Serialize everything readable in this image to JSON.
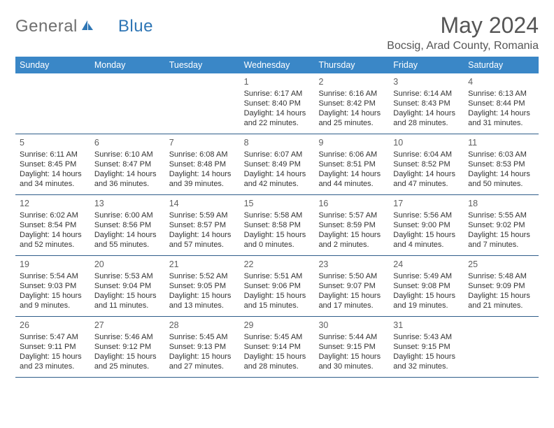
{
  "logo": {
    "text1": "General",
    "text2": "Blue"
  },
  "title": {
    "month": "May 2024",
    "location": "Bocsig, Arad County, Romania"
  },
  "colors": {
    "header_bg": "#3a87c7",
    "header_text": "#ffffff",
    "row_border": "#2f5d8a",
    "title_color": "#555555",
    "logo_gray": "#6f6f6f",
    "logo_blue": "#2f76b5",
    "body_text": "#333333",
    "daynum_color": "#5f5f5f",
    "background": "#ffffff"
  },
  "daysOfWeek": [
    "Sunday",
    "Monday",
    "Tuesday",
    "Wednesday",
    "Thursday",
    "Friday",
    "Saturday"
  ],
  "weeks": [
    [
      null,
      null,
      null,
      {
        "n": "1",
        "sr": "Sunrise: 6:17 AM",
        "ss": "Sunset: 8:40 PM",
        "dl1": "Daylight: 14 hours",
        "dl2": "and 22 minutes."
      },
      {
        "n": "2",
        "sr": "Sunrise: 6:16 AM",
        "ss": "Sunset: 8:42 PM",
        "dl1": "Daylight: 14 hours",
        "dl2": "and 25 minutes."
      },
      {
        "n": "3",
        "sr": "Sunrise: 6:14 AM",
        "ss": "Sunset: 8:43 PM",
        "dl1": "Daylight: 14 hours",
        "dl2": "and 28 minutes."
      },
      {
        "n": "4",
        "sr": "Sunrise: 6:13 AM",
        "ss": "Sunset: 8:44 PM",
        "dl1": "Daylight: 14 hours",
        "dl2": "and 31 minutes."
      }
    ],
    [
      {
        "n": "5",
        "sr": "Sunrise: 6:11 AM",
        "ss": "Sunset: 8:45 PM",
        "dl1": "Daylight: 14 hours",
        "dl2": "and 34 minutes."
      },
      {
        "n": "6",
        "sr": "Sunrise: 6:10 AM",
        "ss": "Sunset: 8:47 PM",
        "dl1": "Daylight: 14 hours",
        "dl2": "and 36 minutes."
      },
      {
        "n": "7",
        "sr": "Sunrise: 6:08 AM",
        "ss": "Sunset: 8:48 PM",
        "dl1": "Daylight: 14 hours",
        "dl2": "and 39 minutes."
      },
      {
        "n": "8",
        "sr": "Sunrise: 6:07 AM",
        "ss": "Sunset: 8:49 PM",
        "dl1": "Daylight: 14 hours",
        "dl2": "and 42 minutes."
      },
      {
        "n": "9",
        "sr": "Sunrise: 6:06 AM",
        "ss": "Sunset: 8:51 PM",
        "dl1": "Daylight: 14 hours",
        "dl2": "and 44 minutes."
      },
      {
        "n": "10",
        "sr": "Sunrise: 6:04 AM",
        "ss": "Sunset: 8:52 PM",
        "dl1": "Daylight: 14 hours",
        "dl2": "and 47 minutes."
      },
      {
        "n": "11",
        "sr": "Sunrise: 6:03 AM",
        "ss": "Sunset: 8:53 PM",
        "dl1": "Daylight: 14 hours",
        "dl2": "and 50 minutes."
      }
    ],
    [
      {
        "n": "12",
        "sr": "Sunrise: 6:02 AM",
        "ss": "Sunset: 8:54 PM",
        "dl1": "Daylight: 14 hours",
        "dl2": "and 52 minutes."
      },
      {
        "n": "13",
        "sr": "Sunrise: 6:00 AM",
        "ss": "Sunset: 8:56 PM",
        "dl1": "Daylight: 14 hours",
        "dl2": "and 55 minutes."
      },
      {
        "n": "14",
        "sr": "Sunrise: 5:59 AM",
        "ss": "Sunset: 8:57 PM",
        "dl1": "Daylight: 14 hours",
        "dl2": "and 57 minutes."
      },
      {
        "n": "15",
        "sr": "Sunrise: 5:58 AM",
        "ss": "Sunset: 8:58 PM",
        "dl1": "Daylight: 15 hours",
        "dl2": "and 0 minutes."
      },
      {
        "n": "16",
        "sr": "Sunrise: 5:57 AM",
        "ss": "Sunset: 8:59 PM",
        "dl1": "Daylight: 15 hours",
        "dl2": "and 2 minutes."
      },
      {
        "n": "17",
        "sr": "Sunrise: 5:56 AM",
        "ss": "Sunset: 9:00 PM",
        "dl1": "Daylight: 15 hours",
        "dl2": "and 4 minutes."
      },
      {
        "n": "18",
        "sr": "Sunrise: 5:55 AM",
        "ss": "Sunset: 9:02 PM",
        "dl1": "Daylight: 15 hours",
        "dl2": "and 7 minutes."
      }
    ],
    [
      {
        "n": "19",
        "sr": "Sunrise: 5:54 AM",
        "ss": "Sunset: 9:03 PM",
        "dl1": "Daylight: 15 hours",
        "dl2": "and 9 minutes."
      },
      {
        "n": "20",
        "sr": "Sunrise: 5:53 AM",
        "ss": "Sunset: 9:04 PM",
        "dl1": "Daylight: 15 hours",
        "dl2": "and 11 minutes."
      },
      {
        "n": "21",
        "sr": "Sunrise: 5:52 AM",
        "ss": "Sunset: 9:05 PM",
        "dl1": "Daylight: 15 hours",
        "dl2": "and 13 minutes."
      },
      {
        "n": "22",
        "sr": "Sunrise: 5:51 AM",
        "ss": "Sunset: 9:06 PM",
        "dl1": "Daylight: 15 hours",
        "dl2": "and 15 minutes."
      },
      {
        "n": "23",
        "sr": "Sunrise: 5:50 AM",
        "ss": "Sunset: 9:07 PM",
        "dl1": "Daylight: 15 hours",
        "dl2": "and 17 minutes."
      },
      {
        "n": "24",
        "sr": "Sunrise: 5:49 AM",
        "ss": "Sunset: 9:08 PM",
        "dl1": "Daylight: 15 hours",
        "dl2": "and 19 minutes."
      },
      {
        "n": "25",
        "sr": "Sunrise: 5:48 AM",
        "ss": "Sunset: 9:09 PM",
        "dl1": "Daylight: 15 hours",
        "dl2": "and 21 minutes."
      }
    ],
    [
      {
        "n": "26",
        "sr": "Sunrise: 5:47 AM",
        "ss": "Sunset: 9:11 PM",
        "dl1": "Daylight: 15 hours",
        "dl2": "and 23 minutes."
      },
      {
        "n": "27",
        "sr": "Sunrise: 5:46 AM",
        "ss": "Sunset: 9:12 PM",
        "dl1": "Daylight: 15 hours",
        "dl2": "and 25 minutes."
      },
      {
        "n": "28",
        "sr": "Sunrise: 5:45 AM",
        "ss": "Sunset: 9:13 PM",
        "dl1": "Daylight: 15 hours",
        "dl2": "and 27 minutes."
      },
      {
        "n": "29",
        "sr": "Sunrise: 5:45 AM",
        "ss": "Sunset: 9:14 PM",
        "dl1": "Daylight: 15 hours",
        "dl2": "and 28 minutes."
      },
      {
        "n": "30",
        "sr": "Sunrise: 5:44 AM",
        "ss": "Sunset: 9:15 PM",
        "dl1": "Daylight: 15 hours",
        "dl2": "and 30 minutes."
      },
      {
        "n": "31",
        "sr": "Sunrise: 5:43 AM",
        "ss": "Sunset: 9:15 PM",
        "dl1": "Daylight: 15 hours",
        "dl2": "and 32 minutes."
      },
      null
    ]
  ]
}
